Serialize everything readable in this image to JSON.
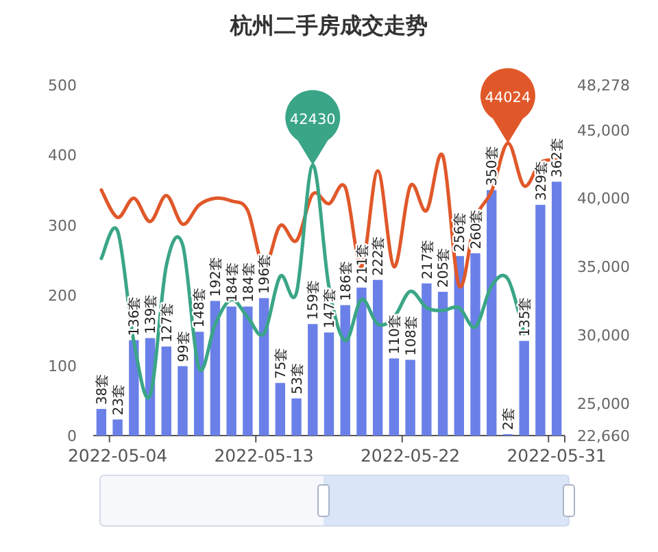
{
  "chart_data": {
    "type": "bar",
    "title": "杭州二手房成交走势",
    "categories": [
      null,
      "2022-05-04",
      null,
      null,
      null,
      null,
      null,
      null,
      null,
      null,
      "2022-05-13",
      null,
      null,
      null,
      null,
      null,
      null,
      null,
      null,
      "2022-05-22",
      null,
      null,
      null,
      null,
      null,
      null,
      null,
      null,
      "2022-05-31"
    ],
    "series": [
      {
        "type": "bar",
        "color": "#6a80e8",
        "values": [
          38,
          23,
          136,
          139,
          127,
          99,
          148,
          192,
          184,
          184,
          196,
          75,
          53,
          159,
          147,
          186,
          211,
          222,
          110,
          108,
          217,
          205,
          256,
          260,
          350,
          2,
          135,
          329,
          362
        ],
        "value_labels": [
          "38套",
          "23套",
          "136套",
          "139套",
          "127套",
          "99套",
          "148套",
          "192套",
          "184套",
          "184套",
          "196套",
          "75套",
          "53套",
          "159套",
          "147套",
          "186套",
          "211套",
          "222套",
          "110套",
          "108套",
          "217套",
          "205套",
          "256套",
          "260套",
          "350套",
          "2套",
          "135套",
          "329套",
          "362套"
        ]
      },
      {
        "type": "line",
        "axis": "y2",
        "color": "#e0582a",
        "values": [
          40600,
          38600,
          40000,
          38300,
          40200,
          38100,
          39500,
          40000,
          39800,
          39100,
          35000,
          38000,
          36900,
          40300,
          39600,
          40800,
          35000,
          42000,
          35000,
          40900,
          39100,
          43100,
          33600,
          38500,
          40500,
          44024,
          40900,
          42600,
          42800
        ],
        "value_labels": [
          null,
          null,
          null,
          null,
          null,
          null,
          null,
          null,
          null,
          null,
          null,
          null,
          null,
          null,
          null,
          null,
          null,
          null,
          null,
          null,
          null,
          null,
          null,
          null,
          null,
          "44024",
          null,
          null,
          null
        ]
      },
      {
        "type": "line",
        "axis": "y2",
        "color": "#3aa587",
        "values": [
          35600,
          37600,
          29500,
          25600,
          35100,
          36600,
          27600,
          30800,
          32600,
          31300,
          30100,
          34300,
          33100,
          42430,
          33500,
          29600,
          32600,
          30800,
          31300,
          33200,
          32000,
          31800,
          32000,
          30600,
          33600,
          34100,
          30100,
          null,
          null
        ],
        "value_labels": [
          null,
          null,
          null,
          null,
          null,
          null,
          null,
          null,
          null,
          null,
          null,
          null,
          null,
          "42430",
          null,
          null,
          null,
          null,
          null,
          null,
          null,
          null,
          null,
          null,
          null,
          null,
          null,
          null,
          null
        ]
      }
    ],
    "ylim": [
      0,
      500
    ],
    "yticks": [
      0,
      100,
      200,
      300,
      400,
      500
    ],
    "y2lim": [
      22660,
      48278
    ],
    "y2ticks": [
      {
        "value": 22660,
        "label": "22,660"
      },
      {
        "value": 25000,
        "label": "25,000"
      },
      {
        "value": 30000,
        "label": "30,000"
      },
      {
        "value": 35000,
        "label": "35,000"
      },
      {
        "value": 40000,
        "label": "40,000"
      },
      {
        "value": 45000,
        "label": "45,000"
      },
      {
        "value": 48278,
        "label": "48,278"
      }
    ]
  }
}
